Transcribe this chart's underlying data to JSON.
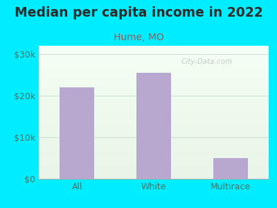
{
  "title": "Median per capita income in 2022",
  "subtitle": "Hume, MO",
  "categories": [
    "All",
    "White",
    "Multirace"
  ],
  "values": [
    22000,
    25500,
    5000
  ],
  "bar_color": "#b8a8d0",
  "background_color": "#00eeff",
  "plot_bg_top": "#f5fff5",
  "plot_bg_bottom": "#e8f5e8",
  "title_color": "#2a2a2a",
  "subtitle_color": "#8a6060",
  "axis_label_color": "#4a7060",
  "yticks": [
    0,
    10000,
    20000,
    30000
  ],
  "ytick_labels": [
    "$0",
    "$10k",
    "$20k",
    "$30k"
  ],
  "ylim": [
    0,
    32000
  ],
  "watermark": "City-Data.com",
  "title_fontsize": 13.5,
  "subtitle_fontsize": 10,
  "tick_fontsize": 9
}
